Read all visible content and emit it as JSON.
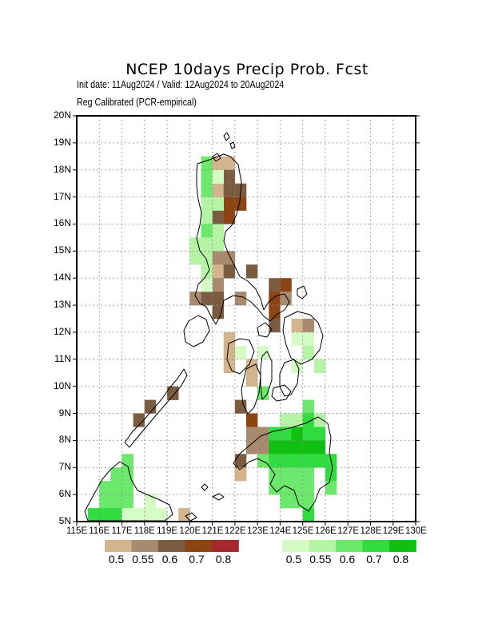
{
  "header": {
    "title": "NCEP 10days Precip Prob. Fcst",
    "subtitle_line1": "Init date: 11Aug2024 / Valid: 12Aug2024 to 20Aug2024",
    "subtitle_line2": "Reg Calibrated (PCR-empirical)"
  },
  "map": {
    "lon_range": [
      115,
      130
    ],
    "lat_range": [
      5,
      20
    ],
    "lat_labels": [
      "5N",
      "6N",
      "7N",
      "8N",
      "9N",
      "10N",
      "11N",
      "12N",
      "13N",
      "14N",
      "15N",
      "16N",
      "17N",
      "18N",
      "19N",
      "20N"
    ],
    "lon_labels": [
      "115E",
      "116E",
      "117E",
      "118E",
      "119E",
      "120E",
      "121E",
      "122E",
      "123E",
      "124E",
      "125E",
      "126E",
      "127E",
      "128E",
      "129E",
      "130E"
    ],
    "gridlines": "dotted",
    "dry_legend": {
      "labels": [
        "0.5",
        "0.55",
        "0.6",
        "0.7",
        "0.8"
      ],
      "colors": [
        "#d4b48c",
        "#a88a6e",
        "#7c5c40",
        "#8c4412",
        "#a4282c"
      ]
    },
    "wet_legend": {
      "labels": [
        "0.5",
        "0.55",
        "0.6",
        "0.7",
        "0.8"
      ],
      "colors": [
        "#d4fcc4",
        "#b4f4a4",
        "#6ce86c",
        "#30dc40",
        "#10c010"
      ]
    },
    "dry_cells": [
      [
        121.25,
        18.25,
        0
      ],
      [
        121.75,
        18.25,
        0
      ],
      [
        121.75,
        17.75,
        2
      ],
      [
        121.25,
        17.25,
        0
      ],
      [
        121.75,
        17.25,
        2
      ],
      [
        122.25,
        17.25,
        2
      ],
      [
        121.75,
        16.75,
        3
      ],
      [
        122.25,
        16.75,
        3
      ],
      [
        121.75,
        16.25,
        3
      ],
      [
        121.25,
        16.25,
        2
      ],
      [
        121.25,
        15.75,
        2
      ],
      [
        121.25,
        14.75,
        1
      ],
      [
        121.75,
        14.75,
        1
      ],
      [
        121.25,
        14.25,
        0
      ],
      [
        121.75,
        14.25,
        2
      ],
      [
        122.75,
        14.25,
        2
      ],
      [
        121.25,
        13.75,
        1
      ],
      [
        120.25,
        13.25,
        1
      ],
      [
        120.75,
        13.25,
        2
      ],
      [
        121.25,
        13.25,
        2
      ],
      [
        122.25,
        13.25,
        1
      ],
      [
        121.25,
        12.75,
        2
      ],
      [
        123.75,
        13.75,
        2
      ],
      [
        124.25,
        13.75,
        3
      ],
      [
        123.75,
        13.25,
        3
      ],
      [
        124.25,
        13.25,
        1
      ],
      [
        123.75,
        12.75,
        3
      ],
      [
        123.75,
        12.25,
        2
      ],
      [
        124.75,
        12.25,
        0
      ],
      [
        125.25,
        12.25,
        1
      ],
      [
        121.75,
        11.75,
        0
      ],
      [
        121.75,
        11.25,
        0
      ],
      [
        121.75,
        10.75,
        0
      ],
      [
        122.75,
        10.75,
        0
      ],
      [
        122.75,
        10.25,
        0
      ],
      [
        119.25,
        9.75,
        2
      ],
      [
        118.25,
        9.25,
        2
      ],
      [
        117.75,
        8.75,
        2
      ],
      [
        122.25,
        9.25,
        2
      ],
      [
        122.75,
        8.75,
        3
      ],
      [
        122.75,
        8.25,
        1
      ],
      [
        123.25,
        8.25,
        1
      ],
      [
        122.75,
        7.75,
        1
      ],
      [
        123.25,
        7.75,
        1
      ],
      [
        122.25,
        7.25,
        2
      ],
      [
        122.25,
        6.75,
        0
      ],
      [
        119.75,
        5.25,
        0
      ]
    ],
    "wet_cells": [
      [
        120.75,
        18.25,
        2
      ],
      [
        120.75,
        17.75,
        2
      ],
      [
        120.75,
        17.25,
        2
      ],
      [
        121.25,
        17.75,
        0
      ],
      [
        120.75,
        16.75,
        1
      ],
      [
        121.25,
        16.75,
        1
      ],
      [
        120.75,
        16.25,
        1
      ],
      [
        120.75,
        15.75,
        2
      ],
      [
        121.25,
        15.75,
        1
      ],
      [
        120.25,
        15.25,
        1
      ],
      [
        120.75,
        15.25,
        1
      ],
      [
        121.25,
        15.25,
        1
      ],
      [
        120.25,
        14.75,
        1
      ],
      [
        120.75,
        14.75,
        1
      ],
      [
        120.75,
        14.25,
        1
      ],
      [
        120.75,
        13.75,
        0
      ],
      [
        122.25,
        11.25,
        0
      ],
      [
        123.25,
        11.25,
        0
      ],
      [
        124.75,
        11.75,
        0
      ],
      [
        125.25,
        11.75,
        0
      ],
      [
        125.25,
        11.25,
        1
      ],
      [
        124.75,
        10.75,
        0
      ],
      [
        125.75,
        10.75,
        1
      ],
      [
        123.25,
        9.75,
        2
      ],
      [
        125.25,
        9.25,
        2
      ],
      [
        124.25,
        8.75,
        1
      ],
      [
        124.75,
        8.75,
        1
      ],
      [
        125.25,
        8.75,
        3
      ],
      [
        125.75,
        8.75,
        1
      ],
      [
        123.75,
        8.25,
        3
      ],
      [
        124.25,
        8.25,
        3
      ],
      [
        124.75,
        8.25,
        4
      ],
      [
        125.25,
        8.25,
        3
      ],
      [
        125.75,
        8.25,
        3
      ],
      [
        123.75,
        7.75,
        4
      ],
      [
        124.25,
        7.75,
        4
      ],
      [
        124.75,
        7.75,
        4
      ],
      [
        125.25,
        7.75,
        4
      ],
      [
        125.75,
        7.75,
        4
      ],
      [
        123.25,
        7.25,
        2
      ],
      [
        123.75,
        7.25,
        3
      ],
      [
        124.25,
        7.25,
        3
      ],
      [
        124.75,
        7.25,
        3
      ],
      [
        125.25,
        7.25,
        3
      ],
      [
        125.75,
        7.25,
        3
      ],
      [
        126.25,
        7.25,
        3
      ],
      [
        123.75,
        6.75,
        2
      ],
      [
        124.25,
        6.75,
        2
      ],
      [
        124.75,
        6.75,
        2
      ],
      [
        125.25,
        6.75,
        2
      ],
      [
        126.25,
        6.75,
        3
      ],
      [
        123.75,
        6.25,
        2
      ],
      [
        124.25,
        6.25,
        2
      ],
      [
        124.75,
        6.25,
        2
      ],
      [
        125.25,
        6.25,
        2
      ],
      [
        126.25,
        6.25,
        2
      ],
      [
        124.25,
        5.75,
        2
      ],
      [
        124.75,
        5.75,
        2
      ],
      [
        125.25,
        5.75,
        2
      ],
      [
        125.25,
        5.25,
        3
      ],
      [
        117.25,
        7.25,
        2
      ],
      [
        116.75,
        6.75,
        2
      ],
      [
        117.25,
        6.75,
        2
      ],
      [
        116.25,
        6.25,
        2
      ],
      [
        116.75,
        6.25,
        2
      ],
      [
        117.25,
        6.25,
        2
      ],
      [
        116.25,
        5.75,
        2
      ],
      [
        116.75,
        5.75,
        2
      ],
      [
        117.25,
        5.75,
        2
      ],
      [
        118.25,
        5.75,
        0
      ],
      [
        115.75,
        5.25,
        3
      ],
      [
        116.25,
        5.25,
        3
      ],
      [
        116.75,
        5.25,
        3
      ],
      [
        117.25,
        5.25,
        0
      ],
      [
        117.75,
        5.25,
        0
      ],
      [
        118.25,
        5.25,
        0
      ],
      [
        118.75,
        5.25,
        0
      ]
    ]
  }
}
